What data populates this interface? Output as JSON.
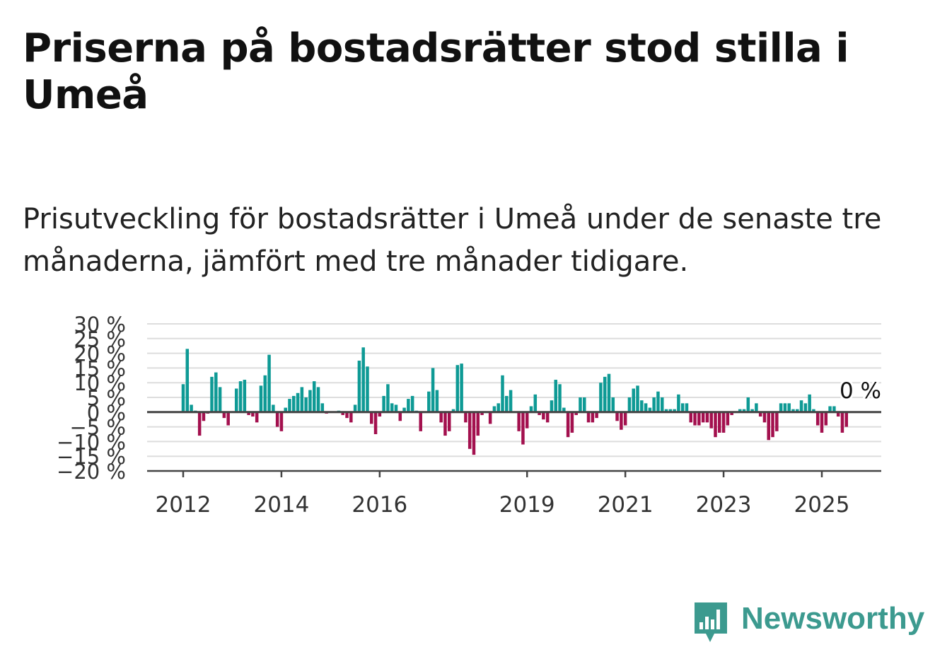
{
  "title": "Priserna på bostadsrätter stod stilla i Umeå",
  "subtitle": "Prisutveckling för bostadsrätter i Umeå under de senaste tre månaderna, jämfört med tre månader tidigare.",
  "brand": {
    "name": "Newsworthy",
    "color": "#3c9a8f",
    "icon": "bar-chart-speech-bubble-icon"
  },
  "colors": {
    "positive": "#0e9a95",
    "negative": "#a3104e",
    "grid": "#dddddd",
    "axis": "#444444"
  },
  "chart_data": {
    "type": "bar",
    "title": "",
    "xlabel": "",
    "ylabel": "",
    "ylim": [
      -20,
      30
    ],
    "y_ticks": [
      30,
      25,
      20,
      15,
      10,
      5,
      0,
      -5,
      -10,
      -15,
      -20
    ],
    "y_tick_labels": [
      "30 %",
      "25 %",
      "20 %",
      "15 %",
      "10 %",
      "5 %",
      "0 %",
      "−5 %",
      "−10 %",
      "−15 %",
      "−20 %"
    ],
    "x_ticks": [
      {
        "label": "2012",
        "year": 2012
      },
      {
        "label": "2014",
        "year": 2014
      },
      {
        "label": "2016",
        "year": 2016
      },
      {
        "label": "2019",
        "year": 2019
      },
      {
        "label": "2021",
        "year": 2021
      },
      {
        "label": "2023",
        "year": 2023
      },
      {
        "label": "2025",
        "year": 2025
      }
    ],
    "grid": true,
    "last_value_label": "0 %",
    "series": [
      {
        "values": [
          {
            "date": "2012-01",
            "value": 9.5
          },
          {
            "date": "2012-02",
            "value": 21.5
          },
          {
            "date": "2012-03",
            "value": 2.5
          },
          {
            "date": "2012-04",
            "value": 0.5
          },
          {
            "date": "2012-05",
            "value": -8.0
          },
          {
            "date": "2012-06",
            "value": -3.0
          },
          {
            "date": "2012-07",
            "value": -0.5
          },
          {
            "date": "2012-08",
            "value": 12.0
          },
          {
            "date": "2012-09",
            "value": 13.5
          },
          {
            "date": "2012-10",
            "value": 8.5
          },
          {
            "date": "2012-11",
            "value": -2.0
          },
          {
            "date": "2012-12",
            "value": -4.5
          },
          {
            "date": "2013-02",
            "value": 8.0
          },
          {
            "date": "2013-03",
            "value": 10.5
          },
          {
            "date": "2013-04",
            "value": 11.0
          },
          {
            "date": "2013-05",
            "value": -1.0
          },
          {
            "date": "2013-06",
            "value": -1.5
          },
          {
            "date": "2013-07",
            "value": -3.5
          },
          {
            "date": "2013-08",
            "value": 9.0
          },
          {
            "date": "2013-09",
            "value": 12.5
          },
          {
            "date": "2013-10",
            "value": 19.5
          },
          {
            "date": "2013-11",
            "value": 2.5
          },
          {
            "date": "2013-12",
            "value": -5.0
          },
          {
            "date": "2014-01",
            "value": -6.5
          },
          {
            "date": "2014-02",
            "value": 1.5
          },
          {
            "date": "2014-03",
            "value": 4.5
          },
          {
            "date": "2014-04",
            "value": 5.5
          },
          {
            "date": "2014-05",
            "value": 6.5
          },
          {
            "date": "2014-06",
            "value": 8.5
          },
          {
            "date": "2014-07",
            "value": 5.0
          },
          {
            "date": "2014-08",
            "value": 7.5
          },
          {
            "date": "2014-09",
            "value": 10.5
          },
          {
            "date": "2014-10",
            "value": 8.5
          },
          {
            "date": "2014-11",
            "value": 3.0
          },
          {
            "date": "2014-12",
            "value": -0.5
          },
          {
            "date": "2015-03",
            "value": 0.5
          },
          {
            "date": "2015-04",
            "value": -1.0
          },
          {
            "date": "2015-05",
            "value": -2.0
          },
          {
            "date": "2015-06",
            "value": -3.5
          },
          {
            "date": "2015-07",
            "value": 2.5
          },
          {
            "date": "2015-08",
            "value": 17.5
          },
          {
            "date": "2015-09",
            "value": 22.0
          },
          {
            "date": "2015-10",
            "value": 15.5
          },
          {
            "date": "2015-11",
            "value": -4.0
          },
          {
            "date": "2015-12",
            "value": -7.5
          },
          {
            "date": "2016-01",
            "value": -1.5
          },
          {
            "date": "2016-02",
            "value": 5.5
          },
          {
            "date": "2016-03",
            "value": 9.5
          },
          {
            "date": "2016-04",
            "value": 3.0
          },
          {
            "date": "2016-05",
            "value": 2.5
          },
          {
            "date": "2016-06",
            "value": -3.0
          },
          {
            "date": "2016-07",
            "value": 1.5
          },
          {
            "date": "2016-08",
            "value": 4.5
          },
          {
            "date": "2016-09",
            "value": 5.5
          },
          {
            "date": "2016-10",
            "value": 0.5
          },
          {
            "date": "2016-11",
            "value": -6.5
          },
          {
            "date": "2017-01",
            "value": 7.0
          },
          {
            "date": "2017-02",
            "value": 15.0
          },
          {
            "date": "2017-03",
            "value": 7.5
          },
          {
            "date": "2017-04",
            "value": -3.5
          },
          {
            "date": "2017-05",
            "value": -8.0
          },
          {
            "date": "2017-06",
            "value": -6.5
          },
          {
            "date": "2017-07",
            "value": 1.0
          },
          {
            "date": "2017-08",
            "value": 16.0
          },
          {
            "date": "2017-09",
            "value": 16.5
          },
          {
            "date": "2017-10",
            "value": -3.5
          },
          {
            "date": "2017-11",
            "value": -12.5
          },
          {
            "date": "2017-12",
            "value": -14.5
          },
          {
            "date": "2018-01",
            "value": -8.0
          },
          {
            "date": "2018-02",
            "value": -1.0
          },
          {
            "date": "2018-04",
            "value": -4.0
          },
          {
            "date": "2018-05",
            "value": 2.0
          },
          {
            "date": "2018-06",
            "value": 3.0
          },
          {
            "date": "2018-07",
            "value": 12.5
          },
          {
            "date": "2018-08",
            "value": 5.5
          },
          {
            "date": "2018-09",
            "value": 7.5
          },
          {
            "date": "2018-11",
            "value": -6.5
          },
          {
            "date": "2018-12",
            "value": -11.0
          },
          {
            "date": "2019-01",
            "value": -5.5
          },
          {
            "date": "2019-02",
            "value": 2.0
          },
          {
            "date": "2019-03",
            "value": 6.0
          },
          {
            "date": "2019-04",
            "value": -1.0
          },
          {
            "date": "2019-05",
            "value": -2.5
          },
          {
            "date": "2019-06",
            "value": -3.5
          },
          {
            "date": "2019-07",
            "value": 4.0
          },
          {
            "date": "2019-08",
            "value": 11.0
          },
          {
            "date": "2019-09",
            "value": 9.5
          },
          {
            "date": "2019-10",
            "value": 1.5
          },
          {
            "date": "2019-11",
            "value": -8.5
          },
          {
            "date": "2019-12",
            "value": -7.0
          },
          {
            "date": "2020-01",
            "value": -1.0
          },
          {
            "date": "2020-02",
            "value": 5.0
          },
          {
            "date": "2020-03",
            "value": 5.0
          },
          {
            "date": "2020-04",
            "value": -3.5
          },
          {
            "date": "2020-05",
            "value": -3.5
          },
          {
            "date": "2020-06",
            "value": -2.0
          },
          {
            "date": "2020-07",
            "value": 10.0
          },
          {
            "date": "2020-08",
            "value": 12.0
          },
          {
            "date": "2020-09",
            "value": 13.0
          },
          {
            "date": "2020-10",
            "value": 5.0
          },
          {
            "date": "2020-11",
            "value": -3.0
          },
          {
            "date": "2020-12",
            "value": -6.0
          },
          {
            "date": "2021-01",
            "value": -4.5
          },
          {
            "date": "2021-02",
            "value": 5.0
          },
          {
            "date": "2021-03",
            "value": 8.0
          },
          {
            "date": "2021-04",
            "value": 9.0
          },
          {
            "date": "2021-05",
            "value": 4.0
          },
          {
            "date": "2021-06",
            "value": 3.0
          },
          {
            "date": "2021-07",
            "value": 1.5
          },
          {
            "date": "2021-08",
            "value": 5.0
          },
          {
            "date": "2021-09",
            "value": 7.0
          },
          {
            "date": "2021-10",
            "value": 5.0
          },
          {
            "date": "2021-11",
            "value": 1.0
          },
          {
            "date": "2021-12",
            "value": 1.0
          },
          {
            "date": "2022-01",
            "value": 1.0
          },
          {
            "date": "2022-02",
            "value": 6.0
          },
          {
            "date": "2022-03",
            "value": 3.0
          },
          {
            "date": "2022-04",
            "value": 3.0
          },
          {
            "date": "2022-05",
            "value": -3.5
          },
          {
            "date": "2022-06",
            "value": -4.5
          },
          {
            "date": "2022-07",
            "value": -4.5
          },
          {
            "date": "2022-08",
            "value": -3.5
          },
          {
            "date": "2022-09",
            "value": -3.5
          },
          {
            "date": "2022-10",
            "value": -5.5
          },
          {
            "date": "2022-11",
            "value": -8.5
          },
          {
            "date": "2022-12",
            "value": -7.0
          },
          {
            "date": "2023-01",
            "value": -7.0
          },
          {
            "date": "2023-02",
            "value": -4.5
          },
          {
            "date": "2023-03",
            "value": -1.0
          },
          {
            "date": "2023-05",
            "value": 1.0
          },
          {
            "date": "2023-06",
            "value": 1.0
          },
          {
            "date": "2023-07",
            "value": 5.0
          },
          {
            "date": "2023-08",
            "value": 1.0
          },
          {
            "date": "2023-09",
            "value": 3.0
          },
          {
            "date": "2023-10",
            "value": -1.5
          },
          {
            "date": "2023-11",
            "value": -3.5
          },
          {
            "date": "2023-12",
            "value": -9.5
          },
          {
            "date": "2024-01",
            "value": -8.5
          },
          {
            "date": "2024-02",
            "value": -6.5
          },
          {
            "date": "2024-03",
            "value": 3.0
          },
          {
            "date": "2024-04",
            "value": 3.0
          },
          {
            "date": "2024-05",
            "value": 3.0
          },
          {
            "date": "2024-06",
            "value": 1.0
          },
          {
            "date": "2024-07",
            "value": 1.0
          },
          {
            "date": "2024-08",
            "value": 4.0
          },
          {
            "date": "2024-09",
            "value": 3.0
          },
          {
            "date": "2024-10",
            "value": 6.0
          },
          {
            "date": "2024-11",
            "value": 1.0
          },
          {
            "date": "2024-12",
            "value": -4.5
          },
          {
            "date": "2025-01",
            "value": -7.0
          },
          {
            "date": "2025-02",
            "value": -4.5
          },
          {
            "date": "2025-03",
            "value": 2.0
          },
          {
            "date": "2025-04",
            "value": 2.0
          },
          {
            "date": "2025-05",
            "value": -1.5
          },
          {
            "date": "2025-06",
            "value": -7.0
          },
          {
            "date": "2025-07",
            "value": -5.0
          },
          {
            "date": "2025-08",
            "value": 0.0
          }
        ]
      }
    ]
  }
}
